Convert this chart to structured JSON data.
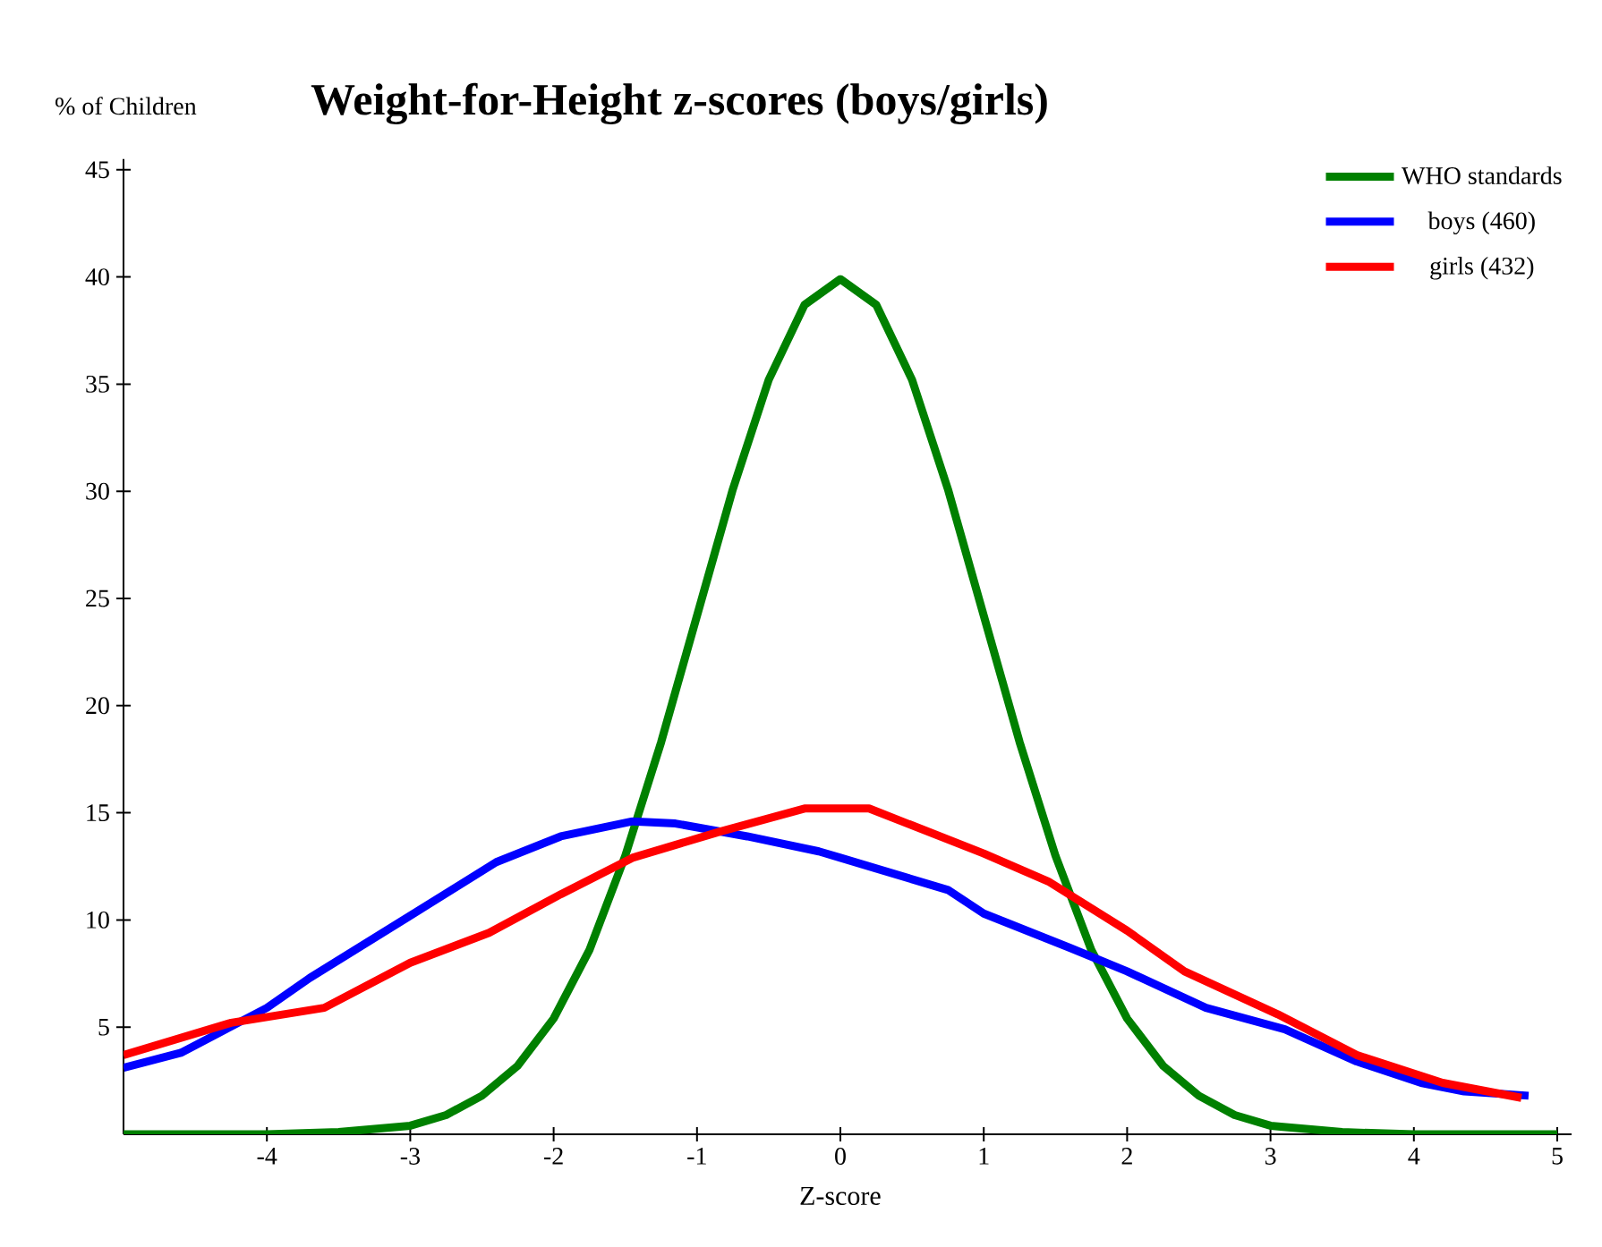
{
  "chart_data": {
    "type": "line",
    "title": "Weight-for-Height z-scores (boys/girls)",
    "ylabel": "% of Children",
    "xlabel": "Z-score",
    "xlim": [
      -5,
      5.1
    ],
    "ylim": [
      0,
      45.5
    ],
    "xticks": [
      -4,
      -3,
      -2,
      -1,
      0,
      1,
      2,
      3,
      4,
      5
    ],
    "yticks": [
      5,
      10,
      15,
      20,
      25,
      30,
      35,
      40,
      45
    ],
    "legend": "top right",
    "grid": false,
    "marker": "none",
    "line_style": "solid",
    "series": [
      {
        "name": "WHO standards",
        "color": "#008000",
        "x": [
          -5,
          -4.5,
          -4,
          -3.5,
          -3,
          -2.75,
          -2.5,
          -2.25,
          -2,
          -1.75,
          -1.5,
          -1.25,
          -1,
          -0.75,
          -0.5,
          -0.25,
          0,
          0.25,
          0.5,
          0.75,
          1,
          1.25,
          1.5,
          1.75,
          2,
          2.25,
          2.5,
          2.75,
          3,
          3.5,
          4,
          4.5,
          5
        ],
        "values": [
          0,
          0,
          0,
          0.1,
          0.4,
          0.9,
          1.8,
          3.2,
          5.4,
          8.6,
          13.0,
          18.3,
          24.2,
          30.1,
          35.2,
          38.7,
          39.9,
          38.7,
          35.2,
          30.1,
          24.2,
          18.3,
          13.0,
          8.6,
          5.4,
          3.2,
          1.8,
          0.9,
          0.4,
          0.1,
          0,
          0,
          0
        ]
      },
      {
        "name": "boys (460)",
        "color": "#0000ff",
        "x": [
          -5,
          -4.6,
          -4.0,
          -3.7,
          -3.0,
          -2.4,
          -1.95,
          -1.45,
          -1.15,
          -0.65,
          -0.15,
          0,
          0.25,
          0.75,
          1.0,
          1.6,
          2.0,
          2.55,
          3.1,
          3.6,
          4.05,
          4.35,
          4.8
        ],
        "values": [
          3.1,
          3.8,
          5.9,
          7.3,
          10.2,
          12.7,
          13.9,
          14.6,
          14.5,
          13.9,
          13.2,
          12.9,
          12.4,
          11.4,
          10.3,
          8.7,
          7.6,
          5.9,
          4.9,
          3.4,
          2.4,
          2.0,
          1.8
        ]
      },
      {
        "name": "girls (432)",
        "color": "#ff0000",
        "x": [
          -5,
          -4.25,
          -3.6,
          -3.0,
          -2.45,
          -1.95,
          -1.45,
          -0.85,
          -0.25,
          0.2,
          1.0,
          1.45,
          2.0,
          2.4,
          3.05,
          3.6,
          4.2,
          4.75
        ],
        "values": [
          3.7,
          5.2,
          5.9,
          8.0,
          9.4,
          11.2,
          12.9,
          14.1,
          15.2,
          15.2,
          13.1,
          11.8,
          9.5,
          7.6,
          5.6,
          3.7,
          2.4,
          1.7
        ]
      }
    ]
  }
}
